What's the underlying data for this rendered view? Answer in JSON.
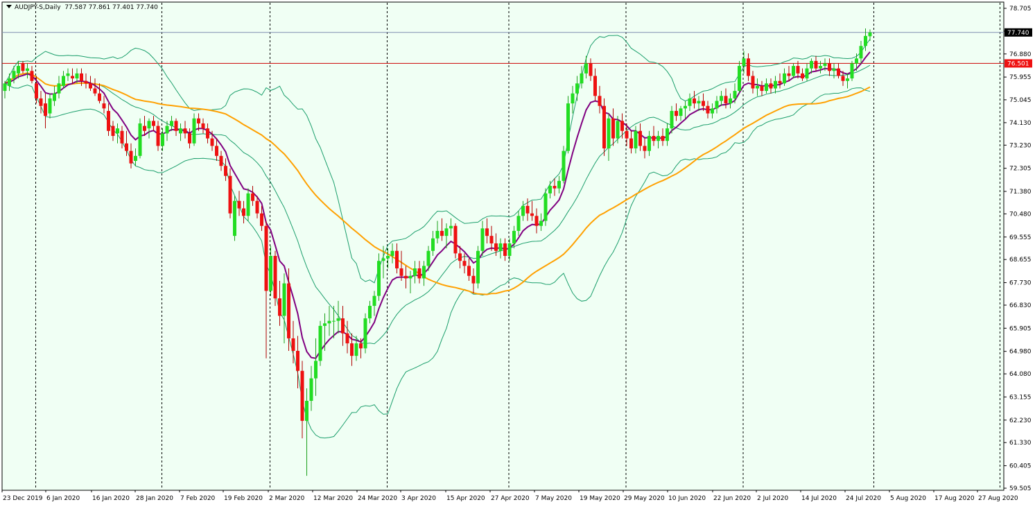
{
  "title": {
    "symbol": "AUDJPY-S,Daily",
    "ohlc": "77.587 77.861 77.401 77.740"
  },
  "colors": {
    "background": "#f0fff4",
    "grid": "#000000",
    "bull": "#22dd22",
    "bear": "#ee1111",
    "ma_fast": "#800080",
    "ma_slow": "#ffa000",
    "bollinger": "#1a9e6b",
    "horizontal_current": "#7f8fb0",
    "horizontal_level": "#cc0000",
    "current_price_box": "#000000",
    "level_box": "#ee1111"
  },
  "chart_data": {
    "type": "candlestick",
    "y_ticks": [
      "78.705",
      "77.790",
      "76.880",
      "75.955",
      "75.045",
      "74.130",
      "73.230",
      "72.305",
      "71.380",
      "70.480",
      "69.555",
      "68.655",
      "67.730",
      "66.830",
      "65.905",
      "64.980",
      "64.080",
      "63.155",
      "62.230",
      "61.330",
      "60.405",
      "59.505"
    ],
    "ylim": [
      59.505,
      78.705
    ],
    "x_labels": [
      "23 Dec 2019",
      "6 Jan 2020",
      "16 Jan 2020",
      "28 Jan 2020",
      "7 Feb 2020",
      "19 Feb 2020",
      "2 Mar 2020",
      "12 Mar 2020",
      "24 Mar 2020",
      "3 Apr 2020",
      "15 Apr 2020",
      "27 Apr 2020",
      "7 May 2020",
      "19 May 2020",
      "29 May 2020",
      "10 Jun 2020",
      "22 Jun 2020",
      "2 Jul 2020",
      "14 Jul 2020",
      "24 Jul 2020",
      "5 Aug 2020",
      "17 Aug 2020",
      "27 Aug 2020"
    ],
    "period_separators": [
      "6 Jan 2020",
      "3 Feb 2020",
      "2 Mar 2020",
      "1 Apr 2020",
      "1 May 2020",
      "1 Jun 2020",
      "1 Jul 2020",
      "3 Aug 2020",
      "1 Sep 2020"
    ],
    "current_price": 77.74,
    "current_price_label": "77.740",
    "level": 76.501,
    "level_label": "76.501",
    "candles": [
      {
        "o": 75.4,
        "h": 75.8,
        "l": 75.1,
        "c": 75.7
      },
      {
        "o": 75.6,
        "h": 76.1,
        "l": 75.4,
        "c": 75.9
      },
      {
        "o": 75.9,
        "h": 76.4,
        "l": 75.7,
        "c": 76.2
      },
      {
        "o": 76.1,
        "h": 76.6,
        "l": 75.9,
        "c": 76.4
      },
      {
        "o": 76.5,
        "h": 76.6,
        "l": 76.1,
        "c": 76.2
      },
      {
        "o": 76.2,
        "h": 76.5,
        "l": 75.9,
        "c": 76.3
      },
      {
        "o": 76.2,
        "h": 76.4,
        "l": 75.7,
        "c": 75.8
      },
      {
        "o": 75.7,
        "h": 76.0,
        "l": 74.9,
        "c": 75.1
      },
      {
        "o": 75.1,
        "h": 75.4,
        "l": 74.5,
        "c": 74.8
      },
      {
        "o": 74.9,
        "h": 75.3,
        "l": 73.9,
        "c": 74.4
      },
      {
        "o": 74.5,
        "h": 75.3,
        "l": 74.3,
        "c": 75.1
      },
      {
        "o": 75.0,
        "h": 75.6,
        "l": 74.8,
        "c": 75.3
      },
      {
        "o": 75.3,
        "h": 76.0,
        "l": 75.1,
        "c": 75.7
      },
      {
        "o": 75.6,
        "h": 76.2,
        "l": 75.5,
        "c": 76.0
      },
      {
        "o": 76.0,
        "h": 76.3,
        "l": 75.8,
        "c": 76.1
      },
      {
        "o": 76.0,
        "h": 76.3,
        "l": 75.7,
        "c": 75.9
      },
      {
        "o": 75.9,
        "h": 76.3,
        "l": 75.7,
        "c": 76.1
      },
      {
        "o": 76.1,
        "h": 76.3,
        "l": 75.6,
        "c": 75.8
      },
      {
        "o": 75.8,
        "h": 76.1,
        "l": 75.5,
        "c": 75.7
      },
      {
        "o": 75.7,
        "h": 76.0,
        "l": 75.4,
        "c": 75.5
      },
      {
        "o": 75.5,
        "h": 75.9,
        "l": 75.2,
        "c": 75.3
      },
      {
        "o": 75.3,
        "h": 75.7,
        "l": 74.9,
        "c": 75.0
      },
      {
        "o": 74.9,
        "h": 75.2,
        "l": 74.5,
        "c": 74.7
      },
      {
        "o": 74.6,
        "h": 74.9,
        "l": 73.6,
        "c": 73.8
      },
      {
        "o": 74.0,
        "h": 74.2,
        "l": 73.4,
        "c": 73.6
      },
      {
        "o": 73.7,
        "h": 74.1,
        "l": 73.3,
        "c": 73.9
      },
      {
        "o": 73.8,
        "h": 74.0,
        "l": 73.1,
        "c": 73.3
      },
      {
        "o": 73.3,
        "h": 73.8,
        "l": 72.8,
        "c": 73.0
      },
      {
        "o": 73.0,
        "h": 73.3,
        "l": 72.3,
        "c": 72.5
      },
      {
        "o": 72.6,
        "h": 73.1,
        "l": 72.4,
        "c": 72.8
      },
      {
        "o": 72.8,
        "h": 74.3,
        "l": 72.7,
        "c": 74.1
      },
      {
        "o": 74.0,
        "h": 74.4,
        "l": 73.6,
        "c": 73.8
      },
      {
        "o": 73.9,
        "h": 74.3,
        "l": 73.5,
        "c": 74.2
      },
      {
        "o": 74.2,
        "h": 74.4,
        "l": 73.8,
        "c": 74.0
      },
      {
        "o": 74.0,
        "h": 74.2,
        "l": 73.0,
        "c": 73.2
      },
      {
        "o": 73.2,
        "h": 73.9,
        "l": 73.0,
        "c": 73.7
      },
      {
        "o": 73.7,
        "h": 74.2,
        "l": 73.4,
        "c": 74.0
      },
      {
        "o": 74.0,
        "h": 74.4,
        "l": 73.8,
        "c": 74.2
      },
      {
        "o": 74.2,
        "h": 74.3,
        "l": 73.6,
        "c": 73.8
      },
      {
        "o": 73.7,
        "h": 74.1,
        "l": 73.4,
        "c": 73.9
      },
      {
        "o": 73.9,
        "h": 74.2,
        "l": 73.5,
        "c": 73.7
      },
      {
        "o": 73.7,
        "h": 73.9,
        "l": 73.1,
        "c": 73.3
      },
      {
        "o": 73.3,
        "h": 74.5,
        "l": 73.2,
        "c": 74.3
      },
      {
        "o": 74.3,
        "h": 74.5,
        "l": 73.8,
        "c": 74.1
      },
      {
        "o": 74.1,
        "h": 74.3,
        "l": 73.7,
        "c": 73.9
      },
      {
        "o": 73.9,
        "h": 74.1,
        "l": 73.3,
        "c": 73.5
      },
      {
        "o": 73.5,
        "h": 73.8,
        "l": 73.0,
        "c": 73.2
      },
      {
        "o": 73.2,
        "h": 73.5,
        "l": 72.6,
        "c": 72.8
      },
      {
        "o": 72.8,
        "h": 73.0,
        "l": 72.2,
        "c": 72.4
      },
      {
        "o": 72.4,
        "h": 72.7,
        "l": 71.8,
        "c": 72.0
      },
      {
        "o": 72.0,
        "h": 72.3,
        "l": 70.3,
        "c": 70.5
      },
      {
        "o": 69.6,
        "h": 71.2,
        "l": 69.4,
        "c": 71.0
      },
      {
        "o": 71.0,
        "h": 71.4,
        "l": 70.4,
        "c": 70.7
      },
      {
        "o": 70.7,
        "h": 71.0,
        "l": 70.1,
        "c": 70.4
      },
      {
        "o": 70.4,
        "h": 71.5,
        "l": 70.2,
        "c": 71.3
      },
      {
        "o": 71.3,
        "h": 71.6,
        "l": 70.8,
        "c": 71.0
      },
      {
        "o": 71.0,
        "h": 71.2,
        "l": 70.3,
        "c": 70.5
      },
      {
        "o": 70.5,
        "h": 70.8,
        "l": 69.8,
        "c": 70.0
      },
      {
        "o": 70.0,
        "h": 70.2,
        "l": 64.7,
        "c": 67.4
      },
      {
        "o": 67.4,
        "h": 69.2,
        "l": 67.2,
        "c": 68.8
      },
      {
        "o": 68.8,
        "h": 69.0,
        "l": 66.8,
        "c": 67.1
      },
      {
        "o": 67.1,
        "h": 67.8,
        "l": 66.0,
        "c": 66.4
      },
      {
        "o": 66.4,
        "h": 68.1,
        "l": 65.3,
        "c": 67.7
      },
      {
        "o": 67.7,
        "h": 68.3,
        "l": 65.0,
        "c": 65.5
      },
      {
        "o": 65.5,
        "h": 66.2,
        "l": 64.5,
        "c": 65.0
      },
      {
        "o": 65.0,
        "h": 65.6,
        "l": 63.5,
        "c": 64.2
      },
      {
        "o": 64.2,
        "h": 64.6,
        "l": 61.5,
        "c": 62.2
      },
      {
        "o": 62.2,
        "h": 63.5,
        "l": 60.0,
        "c": 63.0
      },
      {
        "o": 63.0,
        "h": 64.4,
        "l": 62.6,
        "c": 63.9
      },
      {
        "o": 63.9,
        "h": 65.5,
        "l": 63.2,
        "c": 64.6
      },
      {
        "o": 64.6,
        "h": 66.2,
        "l": 64.4,
        "c": 66.0
      },
      {
        "o": 66.0,
        "h": 66.5,
        "l": 65.0,
        "c": 66.1
      },
      {
        "o": 66.1,
        "h": 66.8,
        "l": 65.6,
        "c": 66.2
      },
      {
        "o": 66.2,
        "h": 66.8,
        "l": 65.5,
        "c": 66.2
      },
      {
        "o": 66.2,
        "h": 67.0,
        "l": 65.7,
        "c": 66.3
      },
      {
        "o": 66.3,
        "h": 66.8,
        "l": 65.2,
        "c": 65.7
      },
      {
        "o": 65.7,
        "h": 66.2,
        "l": 64.9,
        "c": 65.3
      },
      {
        "o": 65.3,
        "h": 65.7,
        "l": 64.4,
        "c": 64.8
      },
      {
        "o": 64.8,
        "h": 65.6,
        "l": 64.6,
        "c": 65.3
      },
      {
        "o": 65.3,
        "h": 65.5,
        "l": 64.7,
        "c": 65.1
      },
      {
        "o": 65.1,
        "h": 66.5,
        "l": 64.9,
        "c": 66.3
      },
      {
        "o": 66.3,
        "h": 67.0,
        "l": 66.1,
        "c": 66.8
      },
      {
        "o": 66.8,
        "h": 67.4,
        "l": 66.4,
        "c": 67.2
      },
      {
        "o": 67.2,
        "h": 68.9,
        "l": 67.0,
        "c": 68.6
      },
      {
        "o": 68.6,
        "h": 69.2,
        "l": 67.9,
        "c": 68.7
      },
      {
        "o": 68.7,
        "h": 69.1,
        "l": 68.3,
        "c": 68.8
      },
      {
        "o": 68.8,
        "h": 69.3,
        "l": 68.5,
        "c": 69.0
      },
      {
        "o": 69.0,
        "h": 69.3,
        "l": 68.1,
        "c": 68.3
      },
      {
        "o": 68.3,
        "h": 69.0,
        "l": 67.8,
        "c": 68.0
      },
      {
        "o": 68.0,
        "h": 68.4,
        "l": 67.5,
        "c": 67.9
      },
      {
        "o": 67.9,
        "h": 68.2,
        "l": 67.3,
        "c": 68.0
      },
      {
        "o": 68.0,
        "h": 68.6,
        "l": 67.7,
        "c": 68.3
      },
      {
        "o": 68.3,
        "h": 68.6,
        "l": 67.7,
        "c": 67.9
      },
      {
        "o": 67.9,
        "h": 68.6,
        "l": 67.6,
        "c": 68.4
      },
      {
        "o": 68.4,
        "h": 69.2,
        "l": 68.2,
        "c": 69.0
      },
      {
        "o": 69.0,
        "h": 69.8,
        "l": 68.8,
        "c": 69.5
      },
      {
        "o": 69.5,
        "h": 70.2,
        "l": 69.3,
        "c": 69.8
      },
      {
        "o": 69.8,
        "h": 70.3,
        "l": 69.4,
        "c": 69.6
      },
      {
        "o": 69.6,
        "h": 70.1,
        "l": 69.1,
        "c": 69.9
      },
      {
        "o": 69.9,
        "h": 70.3,
        "l": 69.6,
        "c": 70.0
      },
      {
        "o": 70.0,
        "h": 70.1,
        "l": 68.7,
        "c": 68.9
      },
      {
        "o": 68.9,
        "h": 69.2,
        "l": 68.3,
        "c": 68.6
      },
      {
        "o": 68.6,
        "h": 68.9,
        "l": 68.1,
        "c": 68.4
      },
      {
        "o": 68.4,
        "h": 68.7,
        "l": 67.8,
        "c": 68.0
      },
      {
        "o": 68.0,
        "h": 68.3,
        "l": 67.3,
        "c": 67.7
      },
      {
        "o": 67.7,
        "h": 69.2,
        "l": 67.5,
        "c": 69.0
      },
      {
        "o": 69.0,
        "h": 70.2,
        "l": 68.8,
        "c": 69.9
      },
      {
        "o": 69.9,
        "h": 70.3,
        "l": 69.3,
        "c": 69.6
      },
      {
        "o": 69.6,
        "h": 70.0,
        "l": 69.0,
        "c": 69.3
      },
      {
        "o": 69.3,
        "h": 69.7,
        "l": 68.8,
        "c": 69.0
      },
      {
        "o": 69.0,
        "h": 69.5,
        "l": 68.7,
        "c": 69.3
      },
      {
        "o": 69.3,
        "h": 69.5,
        "l": 68.6,
        "c": 68.8
      },
      {
        "o": 68.8,
        "h": 69.5,
        "l": 68.6,
        "c": 69.3
      },
      {
        "o": 69.3,
        "h": 70.0,
        "l": 69.1,
        "c": 69.8
      },
      {
        "o": 69.8,
        "h": 70.6,
        "l": 69.6,
        "c": 70.4
      },
      {
        "o": 70.4,
        "h": 71.0,
        "l": 70.2,
        "c": 70.8
      },
      {
        "o": 70.8,
        "h": 71.1,
        "l": 70.2,
        "c": 70.5
      },
      {
        "o": 70.5,
        "h": 71.0,
        "l": 70.2,
        "c": 70.4
      },
      {
        "o": 70.4,
        "h": 70.7,
        "l": 69.7,
        "c": 70.0
      },
      {
        "o": 70.0,
        "h": 70.5,
        "l": 69.8,
        "c": 70.2
      },
      {
        "o": 70.2,
        "h": 71.5,
        "l": 70.0,
        "c": 71.3
      },
      {
        "o": 71.3,
        "h": 71.8,
        "l": 71.1,
        "c": 71.6
      },
      {
        "o": 71.6,
        "h": 71.9,
        "l": 71.2,
        "c": 71.5
      },
      {
        "o": 71.5,
        "h": 72.0,
        "l": 71.3,
        "c": 71.8
      },
      {
        "o": 71.8,
        "h": 73.2,
        "l": 71.7,
        "c": 73.0
      },
      {
        "o": 73.0,
        "h": 75.2,
        "l": 72.9,
        "c": 74.9
      },
      {
        "o": 74.9,
        "h": 75.6,
        "l": 74.5,
        "c": 75.3
      },
      {
        "o": 75.3,
        "h": 76.0,
        "l": 75.0,
        "c": 75.7
      },
      {
        "o": 75.7,
        "h": 76.4,
        "l": 75.5,
        "c": 76.1
      },
      {
        "o": 76.1,
        "h": 76.8,
        "l": 75.9,
        "c": 76.5
      },
      {
        "o": 76.5,
        "h": 76.7,
        "l": 75.8,
        "c": 76.0
      },
      {
        "o": 76.0,
        "h": 76.3,
        "l": 75.0,
        "c": 75.2
      },
      {
        "o": 75.2,
        "h": 75.6,
        "l": 74.5,
        "c": 74.8
      },
      {
        "o": 74.8,
        "h": 75.1,
        "l": 72.8,
        "c": 73.1
      },
      {
        "o": 73.1,
        "h": 74.5,
        "l": 72.6,
        "c": 74.3
      },
      {
        "o": 74.3,
        "h": 74.7,
        "l": 73.2,
        "c": 73.5
      },
      {
        "o": 73.5,
        "h": 74.4,
        "l": 73.3,
        "c": 74.2
      },
      {
        "o": 74.2,
        "h": 74.5,
        "l": 73.5,
        "c": 73.8
      },
      {
        "o": 73.8,
        "h": 74.1,
        "l": 73.2,
        "c": 73.5
      },
      {
        "o": 73.5,
        "h": 73.8,
        "l": 72.9,
        "c": 73.1
      },
      {
        "o": 73.1,
        "h": 74.0,
        "l": 72.9,
        "c": 73.8
      },
      {
        "o": 73.8,
        "h": 74.1,
        "l": 73.0,
        "c": 73.2
      },
      {
        "o": 73.2,
        "h": 73.5,
        "l": 72.7,
        "c": 73.0
      },
      {
        "o": 73.0,
        "h": 73.8,
        "l": 72.8,
        "c": 73.6
      },
      {
        "o": 73.6,
        "h": 74.0,
        "l": 73.2,
        "c": 73.4
      },
      {
        "o": 73.4,
        "h": 73.8,
        "l": 73.1,
        "c": 73.6
      },
      {
        "o": 73.6,
        "h": 73.9,
        "l": 73.2,
        "c": 73.4
      },
      {
        "o": 73.4,
        "h": 74.1,
        "l": 73.2,
        "c": 73.9
      },
      {
        "o": 73.9,
        "h": 74.8,
        "l": 73.7,
        "c": 74.6
      },
      {
        "o": 74.6,
        "h": 74.9,
        "l": 74.2,
        "c": 74.4
      },
      {
        "o": 74.4,
        "h": 74.8,
        "l": 74.2,
        "c": 74.7
      },
      {
        "o": 74.7,
        "h": 75.0,
        "l": 74.3,
        "c": 74.8
      },
      {
        "o": 74.8,
        "h": 75.3,
        "l": 74.6,
        "c": 75.1
      },
      {
        "o": 75.1,
        "h": 75.4,
        "l": 74.7,
        "c": 74.9
      },
      {
        "o": 74.9,
        "h": 75.2,
        "l": 74.6,
        "c": 75.0
      },
      {
        "o": 75.0,
        "h": 75.3,
        "l": 74.6,
        "c": 74.8
      },
      {
        "o": 74.8,
        "h": 75.0,
        "l": 74.3,
        "c": 74.5
      },
      {
        "o": 74.5,
        "h": 74.9,
        "l": 74.3,
        "c": 74.7
      },
      {
        "o": 74.7,
        "h": 75.2,
        "l": 74.5,
        "c": 75.0
      },
      {
        "o": 75.0,
        "h": 75.4,
        "l": 74.8,
        "c": 75.2
      },
      {
        "o": 75.2,
        "h": 75.5,
        "l": 74.7,
        "c": 74.9
      },
      {
        "o": 74.9,
        "h": 75.3,
        "l": 74.7,
        "c": 75.1
      },
      {
        "o": 75.1,
        "h": 75.7,
        "l": 74.9,
        "c": 75.4
      },
      {
        "o": 75.4,
        "h": 76.6,
        "l": 75.3,
        "c": 76.4
      },
      {
        "o": 76.4,
        "h": 77.0,
        "l": 76.1,
        "c": 76.7
      },
      {
        "o": 76.7,
        "h": 76.9,
        "l": 75.8,
        "c": 76.0
      },
      {
        "o": 76.0,
        "h": 76.2,
        "l": 75.3,
        "c": 75.5
      },
      {
        "o": 75.5,
        "h": 75.9,
        "l": 75.2,
        "c": 75.6
      },
      {
        "o": 75.6,
        "h": 75.8,
        "l": 75.2,
        "c": 75.4
      },
      {
        "o": 75.4,
        "h": 75.9,
        "l": 75.3,
        "c": 75.7
      },
      {
        "o": 75.7,
        "h": 75.9,
        "l": 75.3,
        "c": 75.5
      },
      {
        "o": 75.5,
        "h": 76.0,
        "l": 75.3,
        "c": 75.8
      },
      {
        "o": 75.8,
        "h": 76.1,
        "l": 75.5,
        "c": 75.7
      },
      {
        "o": 75.7,
        "h": 76.3,
        "l": 75.6,
        "c": 76.1
      },
      {
        "o": 76.1,
        "h": 76.4,
        "l": 75.8,
        "c": 76.0
      },
      {
        "o": 76.0,
        "h": 76.5,
        "l": 75.9,
        "c": 76.4
      },
      {
        "o": 76.4,
        "h": 76.6,
        "l": 75.9,
        "c": 76.1
      },
      {
        "o": 76.1,
        "h": 76.3,
        "l": 75.8,
        "c": 75.9
      },
      {
        "o": 75.9,
        "h": 76.5,
        "l": 75.8,
        "c": 76.3
      },
      {
        "o": 76.3,
        "h": 76.7,
        "l": 76.1,
        "c": 76.6
      },
      {
        "o": 76.6,
        "h": 76.8,
        "l": 76.2,
        "c": 76.3
      },
      {
        "o": 76.3,
        "h": 76.6,
        "l": 76.1,
        "c": 76.4
      },
      {
        "o": 76.4,
        "h": 76.7,
        "l": 76.2,
        "c": 76.5
      },
      {
        "o": 76.5,
        "h": 76.7,
        "l": 76.0,
        "c": 76.2
      },
      {
        "o": 76.2,
        "h": 76.5,
        "l": 75.9,
        "c": 76.3
      },
      {
        "o": 76.3,
        "h": 76.5,
        "l": 75.9,
        "c": 76.0
      },
      {
        "o": 76.0,
        "h": 76.2,
        "l": 75.6,
        "c": 75.8
      },
      {
        "o": 75.8,
        "h": 76.1,
        "l": 75.5,
        "c": 75.9
      },
      {
        "o": 75.9,
        "h": 76.6,
        "l": 75.8,
        "c": 76.5
      },
      {
        "o": 76.5,
        "h": 76.9,
        "l": 76.2,
        "c": 76.7
      },
      {
        "o": 76.7,
        "h": 77.4,
        "l": 76.5,
        "c": 77.2
      },
      {
        "o": 77.2,
        "h": 77.9,
        "l": 77.0,
        "c": 77.6
      },
      {
        "o": 77.587,
        "h": 77.861,
        "l": 77.401,
        "c": 77.74
      }
    ]
  }
}
